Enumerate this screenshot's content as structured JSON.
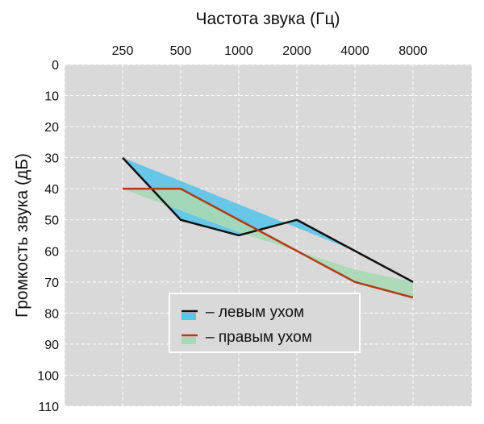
{
  "chart_data": {
    "type": "line",
    "xlabel": "Частота звука (Гц)",
    "ylabel": "Громкость звука (дБ)",
    "x_categories": [
      "250",
      "500",
      "1000",
      "2000",
      "4000",
      "8000"
    ],
    "y_ticks": [
      0,
      10,
      20,
      30,
      40,
      50,
      60,
      70,
      80,
      90,
      100,
      110
    ],
    "ylim": [
      0,
      110
    ],
    "y_inverted": true,
    "grid": true,
    "legend_position": "bottom-center",
    "series": [
      {
        "name": "– левым ухом",
        "color": "#111111",
        "values": [
          30,
          50,
          55,
          50,
          60,
          70
        ],
        "band_color": "#5bc4ea",
        "band_upper": [
          30,
          37.5,
          45,
          52.5,
          60,
          70
        ]
      },
      {
        "name": "– правым ухом",
        "color": "#b23a14",
        "values": [
          40,
          40,
          50,
          60,
          70,
          75
        ],
        "band_color": "#a9d8b4",
        "band_lower": [
          40,
          47,
          54,
          60,
          66,
          70
        ]
      }
    ]
  }
}
